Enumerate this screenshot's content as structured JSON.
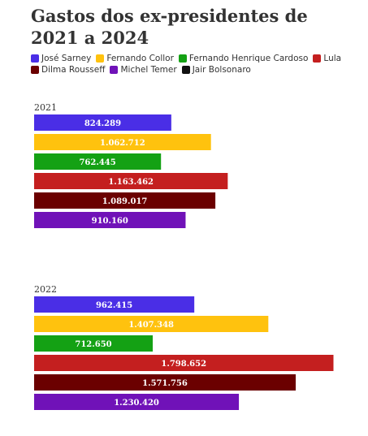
{
  "title": "Gastos dos ex-presidentes de 2021 a 2024",
  "legend": [
    {
      "name": "José Sarney",
      "color": "#4a2ee6"
    },
    {
      "name": "Fernando Collor",
      "color": "#ffc20e"
    },
    {
      "name": "Fernando Henrique Cardoso",
      "color": "#14a114"
    },
    {
      "name": "Lula",
      "color": "#c41f1f"
    },
    {
      "name": "Dilma Rousseff",
      "color": "#6b0000"
    },
    {
      "name": "Michel Temer",
      "color": "#7012b8"
    },
    {
      "name": "Jair Bolsonaro",
      "color": "#111111"
    }
  ],
  "chart_data": {
    "type": "bar",
    "orientation": "horizontal",
    "title": "Gastos dos ex-presidentes de 2021 a 2024",
    "xlim": [
      0,
      1850000
    ],
    "legend_position": "top",
    "groups": [
      {
        "label": "2021",
        "bars": [
          {
            "series": "José Sarney",
            "value": 824289,
            "label": "824.289",
            "color": "#4a2ee6"
          },
          {
            "series": "Fernando Collor",
            "value": 1062712,
            "label": "1.062.712",
            "color": "#ffc20e"
          },
          {
            "series": "Fernando Henrique Cardoso",
            "value": 762445,
            "label": "762.445",
            "color": "#14a114"
          },
          {
            "series": "Lula",
            "value": 1163462,
            "label": "1.163.462",
            "color": "#c41f1f"
          },
          {
            "series": "Dilma Rousseff",
            "value": 1089017,
            "label": "1.089.017",
            "color": "#6b0000"
          },
          {
            "series": "Michel Temer",
            "value": 910160,
            "label": "910.160",
            "color": "#7012b8"
          }
        ]
      },
      {
        "label": "2022",
        "bars": [
          {
            "series": "José Sarney",
            "value": 962415,
            "label": "962.415",
            "color": "#4a2ee6"
          },
          {
            "series": "Fernando Collor",
            "value": 1407348,
            "label": "1.407.348",
            "color": "#ffc20e"
          },
          {
            "series": "Fernando Henrique Cardoso",
            "value": 712650,
            "label": "712.650",
            "color": "#14a114"
          },
          {
            "series": "Lula",
            "value": 1798652,
            "label": "1.798.652",
            "color": "#c41f1f"
          },
          {
            "series": "Dilma Rousseff",
            "value": 1571756,
            "label": "1.571.756",
            "color": "#6b0000"
          },
          {
            "series": "Michel Temer",
            "value": 1230420,
            "label": "1.230.420",
            "color": "#7012b8"
          }
        ]
      }
    ]
  }
}
